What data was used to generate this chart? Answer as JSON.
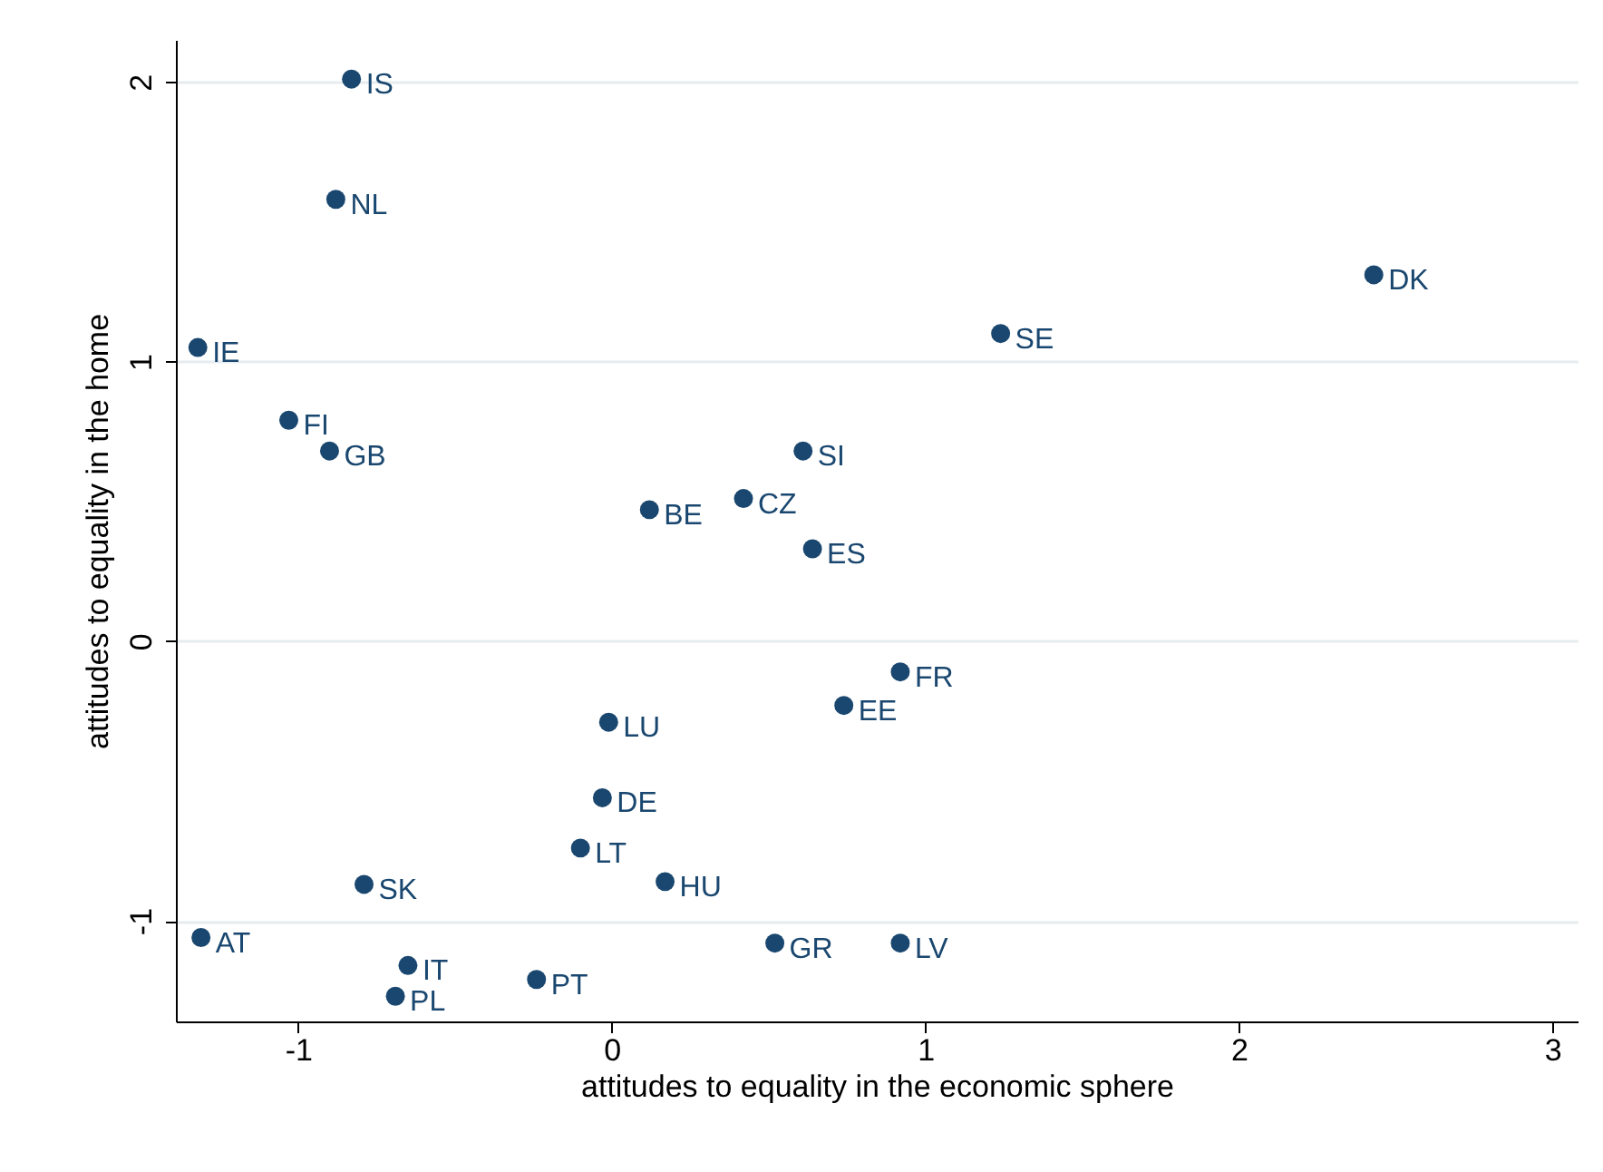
{
  "chart_data": {
    "type": "scatter",
    "xlabel": "attitudes to equality in the economic sphere",
    "ylabel": "attitudes to equality in the home",
    "xlim": [
      -1.39,
      3.08
    ],
    "ylim": [
      -1.36,
      2.15
    ],
    "xticks": [
      -1,
      0,
      1,
      2,
      3
    ],
    "yticks": [
      -1,
      0,
      1,
      2
    ],
    "grid": "y",
    "marker": "circle",
    "series": [
      {
        "color": "#1a476f",
        "x": [
          -0.83,
          -0.88,
          -1.32,
          -1.03,
          -0.9,
          2.43,
          1.24,
          0.61,
          0.42,
          0.12,
          0.64,
          0.92,
          0.74,
          -0.01,
          -0.03,
          -0.1,
          0.17,
          -0.79,
          -1.31,
          -0.65,
          -0.69,
          -0.24,
          0.52,
          0.92
        ],
        "values": [
          2.01,
          1.58,
          1.05,
          0.79,
          0.68,
          1.31,
          1.1,
          0.68,
          0.51,
          0.47,
          0.33,
          -0.11,
          -0.23,
          -0.29,
          -0.56,
          -0.74,
          -0.86,
          -0.87,
          -1.06,
          -1.16,
          -1.27,
          -1.21,
          -1.08,
          -1.08
        ],
        "value_labels": [
          "IS",
          "NL",
          "IE",
          "FI",
          "GB",
          "DK",
          "SE",
          "SI",
          "CZ",
          "BE",
          "ES",
          "FR",
          "EE",
          "LU",
          "DE",
          "LT",
          "HU",
          "SK",
          "AT",
          "IT",
          "PL",
          "PT",
          "GR",
          "LV"
        ]
      }
    ]
  }
}
